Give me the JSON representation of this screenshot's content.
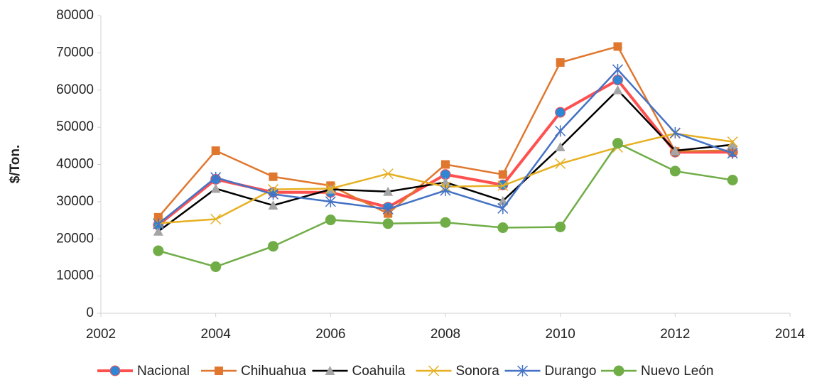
{
  "chart_data": {
    "type": "line",
    "y_label": "$/Ton.",
    "xlim": [
      2002,
      2014
    ],
    "xticks": [
      2002,
      2004,
      2006,
      2008,
      2010,
      2012,
      2014
    ],
    "ylim": [
      0,
      80000
    ],
    "yticks": [
      0,
      10000,
      20000,
      30000,
      40000,
      50000,
      60000,
      70000,
      80000
    ],
    "legend": "bottom",
    "x": [
      2003,
      2004,
      2005,
      2006,
      2007,
      2008,
      2009,
      2010,
      2011,
      2012,
      2013
    ],
    "series": [
      {
        "name": "Nacional",
        "color": "#ff5050",
        "marker": "circle",
        "marker_color": "#2e86d4",
        "values": [
          23700,
          36000,
          32500,
          32500,
          28500,
          37300,
          34500,
          54000,
          62700,
          43300,
          43300
        ]
      },
      {
        "name": "Chihuahua",
        "color": "#e0772f",
        "marker": "square",
        "marker_color": "#e0772f",
        "values": [
          25800,
          43700,
          36700,
          34300,
          26800,
          40000,
          37300,
          67400,
          71700,
          43500,
          43800
        ]
      },
      {
        "name": "Coahuila",
        "color": "#000000",
        "marker": "triangle",
        "marker_color": "#a5a5a5",
        "values": [
          22000,
          33500,
          29000,
          33300,
          32700,
          35200,
          30200,
          44700,
          60000,
          43700,
          45300
        ]
      },
      {
        "name": "Sonora",
        "color": "#e6b022",
        "marker": "x",
        "marker_color": "#e6b022",
        "values": [
          24200,
          25300,
          33300,
          33500,
          37500,
          34000,
          34300,
          40200,
          44600,
          48300,
          46100
        ]
      },
      {
        "name": "Durango",
        "color": "#4472c4",
        "marker": "star",
        "marker_color": "#4472c4",
        "values": [
          24000,
          36500,
          32000,
          30000,
          28000,
          33000,
          28200,
          49000,
          65500,
          48500,
          43000
        ]
      },
      {
        "name": "Nuevo León",
        "color": "#70ad47",
        "marker": "circle",
        "marker_color": "#70ad47",
        "values": [
          16800,
          12500,
          18000,
          25100,
          24100,
          24400,
          23000,
          23200,
          45700,
          38200,
          35800
        ]
      }
    ]
  }
}
